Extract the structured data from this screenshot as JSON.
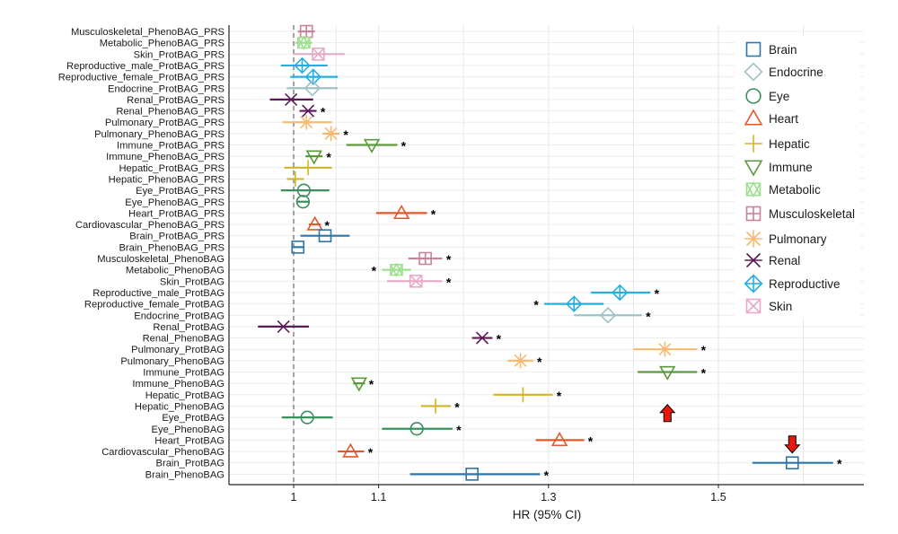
{
  "chart_data": {
    "type": "forest",
    "xlabel": "HR (95% CI)",
    "ylabel": "",
    "xlim": [
      0.93,
      1.68
    ],
    "x_ticks": [
      1,
      1.1,
      1.3,
      1.5
    ],
    "x_tick_labels": [
      "1",
      "1.1",
      "1.3",
      "1.5"
    ],
    "reference_line": 1,
    "grid": true,
    "legend_position": "right",
    "categories_order": [
      "Brain",
      "Endocrine",
      "Eye",
      "Heart",
      "Hepatic",
      "Immune",
      "Metabolic",
      "Musculoskeletal",
      "Pulmonary",
      "Renal",
      "Reproductive",
      "Skin"
    ],
    "categories": {
      "Brain": {
        "color": "#2e75a8",
        "marker": "square"
      },
      "Endocrine": {
        "color": "#9fc2c6",
        "marker": "diamond"
      },
      "Eye": {
        "color": "#3a8f5c",
        "marker": "circle"
      },
      "Heart": {
        "color": "#e2582a",
        "marker": "triangle-up"
      },
      "Hepatic": {
        "color": "#d4b326",
        "marker": "plus"
      },
      "Immune": {
        "color": "#5a9a3c",
        "marker": "triangle-down"
      },
      "Metabolic": {
        "color": "#9ce08d",
        "marker": "star-box"
      },
      "Musculoskeletal": {
        "color": "#c9839a",
        "marker": "square-plus"
      },
      "Pulmonary": {
        "color": "#f7b970",
        "marker": "asterisk"
      },
      "Renal": {
        "color": "#5b1a55",
        "marker": "x-bar"
      },
      "Reproductive": {
        "color": "#25aee0",
        "marker": "diamond-plus"
      },
      "Skin": {
        "color": "#e6a9c8",
        "marker": "square-x"
      }
    },
    "rows": [
      {
        "label": "Musculoskeletal_PhenoBAG_PRS",
        "category": "Musculoskeletal",
        "hr": 1.015,
        "lo": 1.005,
        "hi": 1.025,
        "sig": false
      },
      {
        "label": "Metabolic_PhenoBAG_PRS",
        "category": "Metabolic",
        "hr": 1.012,
        "lo": 1.002,
        "hi": 1.022,
        "sig": false
      },
      {
        "label": "Skin_ProtBAG_PRS",
        "category": "Skin",
        "hr": 1.029,
        "lo": 1.0,
        "hi": 1.06,
        "sig": false
      },
      {
        "label": "Reproductive_male_ProtBAG_PRS",
        "category": "Reproductive",
        "hr": 1.01,
        "lo": 0.985,
        "hi": 1.04,
        "sig": false
      },
      {
        "label": "Reproductive_female_ProtBAG_PRS",
        "category": "Reproductive",
        "hr": 1.023,
        "lo": 0.996,
        "hi": 1.052,
        "sig": false
      },
      {
        "label": "Endocrine_ProtBAG_PRS",
        "category": "Endocrine",
        "hr": 1.022,
        "lo": 0.992,
        "hi": 1.052,
        "sig": false
      },
      {
        "label": "Renal_ProtBAG_PRS",
        "category": "Renal",
        "hr": 0.997,
        "lo": 0.972,
        "hi": 1.023,
        "sig": false
      },
      {
        "label": "Renal_PhenoBAG_PRS",
        "category": "Renal",
        "hr": 1.017,
        "lo": 1.007,
        "hi": 1.027,
        "sig": true
      },
      {
        "label": "Pulmonary_ProtBAG_PRS",
        "category": "Pulmonary",
        "hr": 1.015,
        "lo": 0.987,
        "hi": 1.045,
        "sig": false
      },
      {
        "label": "Pulmonary_PhenoBAG_PRS",
        "category": "Pulmonary",
        "hr": 1.044,
        "lo": 1.034,
        "hi": 1.054,
        "sig": true
      },
      {
        "label": "Immune_ProtBAG_PRS",
        "category": "Immune",
        "hr": 1.092,
        "lo": 1.062,
        "hi": 1.122,
        "sig": true
      },
      {
        "label": "Immune_PhenoBAG_PRS",
        "category": "Immune",
        "hr": 1.024,
        "lo": 1.014,
        "hi": 1.034,
        "sig": true
      },
      {
        "label": "Hepatic_ProtBAG_PRS",
        "category": "Hepatic",
        "hr": 1.017,
        "lo": 0.989,
        "hi": 1.045,
        "sig": false
      },
      {
        "label": "Hepatic_PhenoBAG_PRS",
        "category": "Hepatic",
        "hr": 1.002,
        "lo": 0.992,
        "hi": 1.012,
        "sig": false
      },
      {
        "label": "Eye_ProtBAG_PRS",
        "category": "Eye",
        "hr": 1.012,
        "lo": 0.985,
        "hi": 1.042,
        "sig": false
      },
      {
        "label": "Eye_PhenoBAG_PRS",
        "category": "Eye",
        "hr": 1.011,
        "lo": 1.004,
        "hi": 1.018,
        "sig": false
      },
      {
        "label": "Heart_ProtBAG_PRS",
        "category": "Heart",
        "hr": 1.127,
        "lo": 1.097,
        "hi": 1.157,
        "sig": true
      },
      {
        "label": "Cardiovascular_PhenoBAG_PRS",
        "category": "Heart",
        "hr": 1.025,
        "lo": 1.018,
        "hi": 1.032,
        "sig": true
      },
      {
        "label": "Brain_ProtBAG_PRS",
        "category": "Brain",
        "hr": 1.037,
        "lo": 1.008,
        "hi": 1.066,
        "sig": false
      },
      {
        "label": "Brain_PhenoBAG_PRS",
        "category": "Brain",
        "hr": 1.005,
        "lo": 0.999,
        "hi": 1.011,
        "sig": false
      },
      {
        "label": "Musculoskeletal_PhenoBAG",
        "category": "Musculoskeletal",
        "hr": 1.155,
        "lo": 1.135,
        "hi": 1.175,
        "sig": true
      },
      {
        "label": "Metabolic_PhenoBAG",
        "category": "Metabolic",
        "hr": 1.121,
        "lo": 1.104,
        "hi": 1.138,
        "sig": true,
        "star_left": true
      },
      {
        "label": "Skin_ProtBAG",
        "category": "Skin",
        "hr": 1.144,
        "lo": 1.11,
        "hi": 1.175,
        "sig": true
      },
      {
        "label": "Reproductive_male_ProtBAG",
        "category": "Reproductive",
        "hr": 1.384,
        "lo": 1.35,
        "hi": 1.42,
        "sig": true
      },
      {
        "label": "Reproductive_female_ProtBAG",
        "category": "Reproductive",
        "hr": 1.33,
        "lo": 1.295,
        "hi": 1.365,
        "sig": true,
        "star_left": true
      },
      {
        "label": "Endocrine_ProtBAG",
        "category": "Endocrine",
        "hr": 1.37,
        "lo": 1.33,
        "hi": 1.41,
        "sig": true
      },
      {
        "label": "Renal_ProtBAG",
        "category": "Renal",
        "hr": 0.988,
        "lo": 0.958,
        "hi": 1.018,
        "sig": false
      },
      {
        "label": "Renal_PhenoBAG",
        "category": "Renal",
        "hr": 1.222,
        "lo": 1.21,
        "hi": 1.234,
        "sig": true
      },
      {
        "label": "Pulmonary_ProtBAG",
        "category": "Pulmonary",
        "hr": 1.437,
        "lo": 1.4,
        "hi": 1.475,
        "sig": true
      },
      {
        "label": "Pulmonary_PhenoBAG",
        "category": "Pulmonary",
        "hr": 1.267,
        "lo": 1.252,
        "hi": 1.282,
        "sig": true
      },
      {
        "label": "Immune_ProtBAG",
        "category": "Immune",
        "hr": 1.44,
        "lo": 1.405,
        "hi": 1.475,
        "sig": true
      },
      {
        "label": "Immune_PhenoBAG",
        "category": "Immune",
        "hr": 1.077,
        "lo": 1.07,
        "hi": 1.084,
        "sig": true
      },
      {
        "label": "Hepatic_ProtBAG",
        "category": "Hepatic",
        "hr": 1.27,
        "lo": 1.235,
        "hi": 1.305,
        "sig": true
      },
      {
        "label": "Hepatic_PhenoBAG",
        "category": "Hepatic",
        "hr": 1.167,
        "lo": 1.15,
        "hi": 1.185,
        "sig": true
      },
      {
        "label": "Eye_ProtBAG",
        "category": "Eye",
        "hr": 1.016,
        "lo": 0.986,
        "hi": 1.046,
        "sig": false
      },
      {
        "label": "Eye_PhenoBAG",
        "category": "Eye",
        "hr": 1.145,
        "lo": 1.104,
        "hi": 1.187,
        "sig": true
      },
      {
        "label": "Heart_ProtBAG",
        "category": "Heart",
        "hr": 1.313,
        "lo": 1.285,
        "hi": 1.342,
        "sig": true
      },
      {
        "label": "Cardiovascular_PhenoBAG",
        "category": "Heart",
        "hr": 1.067,
        "lo": 1.052,
        "hi": 1.083,
        "sig": true
      },
      {
        "label": "Brain_ProtBAG",
        "category": "Brain",
        "hr": 1.587,
        "lo": 1.54,
        "hi": 1.635,
        "sig": true
      },
      {
        "label": "Brain_PhenoBAG",
        "category": "Brain",
        "hr": 1.21,
        "lo": 1.137,
        "hi": 1.29,
        "sig": true
      }
    ],
    "annotations": [
      {
        "type": "arrow-up",
        "color": "#e8180d",
        "row": "Hepatic_ProtBAG",
        "x": 1.44
      },
      {
        "type": "arrow-down",
        "color": "#e8180d",
        "row": "Brain_ProtBAG",
        "x": 1.587
      }
    ]
  }
}
